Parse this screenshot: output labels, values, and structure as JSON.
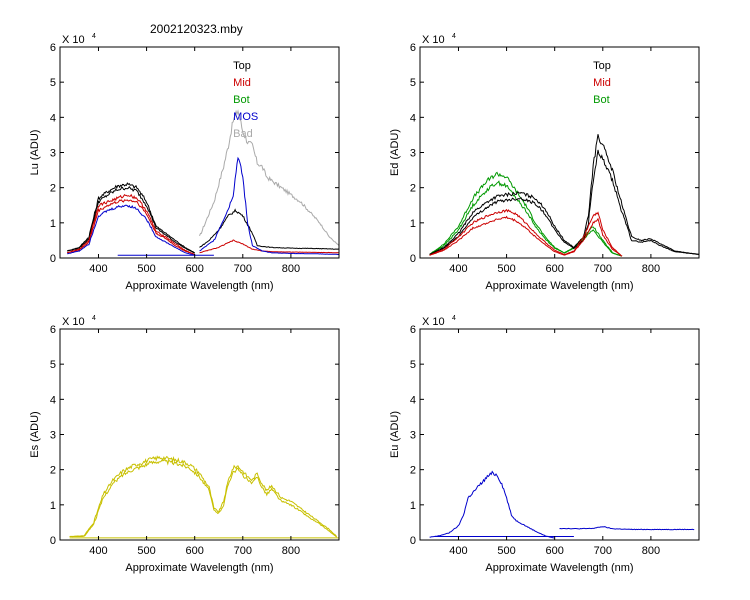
{
  "page_title": "2002120323.mby",
  "chart_data": [
    {
      "id": "lu",
      "type": "line",
      "ylabel": "Lu  (ADU)",
      "xlabel": "Approximate Wavelength (nm)",
      "exponent_label": "X 10",
      "exponent_power": "4",
      "xlim": [
        320,
        900
      ],
      "ylim": [
        0,
        6
      ],
      "xticks": [
        400,
        500,
        600,
        700,
        800
      ],
      "yticks": [
        0,
        1,
        2,
        3,
        4,
        5,
        6
      ],
      "legend": [
        {
          "label": "Top",
          "color": "#000000"
        },
        {
          "label": "Mid",
          "color": "#cc0000"
        },
        {
          "label": "Bot",
          "color": "#009900"
        },
        {
          "label": "MOS",
          "color": "#0000cc"
        },
        {
          "label": "Bad",
          "color": "#aaaaaa"
        }
      ],
      "series": [
        {
          "name": "Bad",
          "color": "#aaaaaa",
          "x": [
            610,
            640,
            660,
            670,
            680,
            690,
            700,
            710,
            720,
            730,
            740,
            750,
            760,
            780,
            800,
            820,
            840,
            860,
            880,
            900
          ],
          "y": [
            0.6,
            1.6,
            2.6,
            3.2,
            3.9,
            4.2,
            3.6,
            3.3,
            3.2,
            2.7,
            2.6,
            2.3,
            2.2,
            2.0,
            1.8,
            1.6,
            1.3,
            1.0,
            0.6,
            0.35
          ]
        },
        {
          "name": "Top",
          "color": "#000000",
          "x": [
            335,
            360,
            380,
            400,
            420,
            440,
            460,
            480,
            500,
            520,
            540,
            560,
            580,
            600
          ],
          "y": [
            0.2,
            0.3,
            0.6,
            1.7,
            1.9,
            2.05,
            2.1,
            2.0,
            1.6,
            0.9,
            0.7,
            0.5,
            0.3,
            0.15
          ]
        },
        {
          "name": "Top",
          "color": "#000000",
          "x": [
            335,
            360,
            380,
            400,
            420,
            440,
            460,
            480,
            500,
            520,
            540,
            560,
            580,
            600
          ],
          "y": [
            0.2,
            0.28,
            0.55,
            1.6,
            1.8,
            1.95,
            2.0,
            1.9,
            1.5,
            0.85,
            0.65,
            0.45,
            0.28,
            0.14
          ]
        },
        {
          "name": "Top",
          "color": "#000000",
          "x": [
            610,
            630,
            650,
            670,
            685,
            700,
            720,
            730,
            760,
            800,
            850,
            900
          ],
          "y": [
            0.3,
            0.5,
            0.8,
            1.2,
            1.35,
            1.2,
            0.7,
            0.35,
            0.3,
            0.28,
            0.27,
            0.25
          ]
        },
        {
          "name": "Mid",
          "color": "#cc0000",
          "x": [
            335,
            360,
            380,
            400,
            420,
            440,
            460,
            480,
            500,
            520,
            540,
            560,
            580,
            600
          ],
          "y": [
            0.15,
            0.25,
            0.5,
            1.5,
            1.6,
            1.7,
            1.8,
            1.7,
            1.35,
            0.75,
            0.6,
            0.4,
            0.22,
            0.1
          ]
        },
        {
          "name": "Mid",
          "color": "#cc0000",
          "x": [
            335,
            360,
            380,
            400,
            420,
            440,
            460,
            480,
            500,
            520,
            540,
            560,
            580,
            600
          ],
          "y": [
            0.15,
            0.23,
            0.45,
            1.35,
            1.5,
            1.6,
            1.65,
            1.6,
            1.25,
            0.7,
            0.55,
            0.35,
            0.2,
            0.1
          ]
        },
        {
          "name": "Mid",
          "color": "#cc0000",
          "x": [
            610,
            650,
            680,
            700,
            720,
            740,
            760,
            800,
            850,
            900
          ],
          "y": [
            0.15,
            0.3,
            0.5,
            0.4,
            0.25,
            0.2,
            0.18,
            0.17,
            0.16,
            0.15
          ]
        },
        {
          "name": "MOS",
          "color": "#0000cc",
          "x": [
            335,
            360,
            380,
            400,
            420,
            440,
            460,
            480,
            500,
            520,
            540,
            560,
            580,
            600
          ],
          "y": [
            0.12,
            0.2,
            0.4,
            1.2,
            1.35,
            1.45,
            1.5,
            1.4,
            1.1,
            0.6,
            0.45,
            0.3,
            0.15,
            0.08
          ]
        },
        {
          "name": "MOS",
          "color": "#0000cc",
          "x": [
            610,
            640,
            660,
            670,
            680,
            690,
            700,
            710,
            720,
            740,
            760,
            800,
            850,
            900
          ],
          "y": [
            0.2,
            0.5,
            1.1,
            1.4,
            1.8,
            2.9,
            2.3,
            1.0,
            0.35,
            0.2,
            0.15,
            0.13,
            0.12,
            0.1
          ]
        },
        {
          "name": "MOS",
          "color": "#0000cc",
          "x": [
            440,
            480,
            520,
            560,
            600,
            640
          ],
          "y": [
            0.08,
            0.08,
            0.08,
            0.08,
            0.08,
            0.08
          ]
        }
      ]
    },
    {
      "id": "ed",
      "type": "line",
      "ylabel": "Ed  (ADU)",
      "xlabel": "Approximate Wavelength (nm)",
      "exponent_label": "X 10",
      "exponent_power": "4",
      "xlim": [
        320,
        900
      ],
      "ylim": [
        0,
        6
      ],
      "xticks": [
        400,
        500,
        600,
        700,
        800
      ],
      "yticks": [
        0,
        1,
        2,
        3,
        4,
        5,
        6
      ],
      "legend": [
        {
          "label": "Top",
          "color": "#000000"
        },
        {
          "label": "Mid",
          "color": "#cc0000"
        },
        {
          "label": "Bot",
          "color": "#009900"
        }
      ],
      "series": [
        {
          "name": "Bot",
          "color": "#009900",
          "x": [
            340,
            370,
            400,
            430,
            460,
            480,
            500,
            520,
            540,
            560,
            580,
            600,
            620,
            640,
            660,
            680,
            700,
            720,
            740
          ],
          "y": [
            0.1,
            0.4,
            0.9,
            1.7,
            2.2,
            2.4,
            2.3,
            1.9,
            1.5,
            1.0,
            0.6,
            0.3,
            0.15,
            0.3,
            0.6,
            0.9,
            0.5,
            0.15,
            0.05
          ]
        },
        {
          "name": "Bot",
          "color": "#009900",
          "x": [
            340,
            370,
            400,
            430,
            460,
            480,
            500,
            520,
            540,
            560,
            580,
            600,
            620,
            640,
            660,
            680,
            700,
            720,
            740
          ],
          "y": [
            0.1,
            0.35,
            0.8,
            1.5,
            1.95,
            2.15,
            2.05,
            1.7,
            1.35,
            0.9,
            0.55,
            0.28,
            0.14,
            0.28,
            0.55,
            0.8,
            0.45,
            0.14,
            0.05
          ]
        },
        {
          "name": "Top",
          "color": "#000000",
          "x": [
            340,
            370,
            400,
            430,
            460,
            480,
            500,
            530,
            560,
            580,
            600,
            620,
            640,
            660,
            670,
            680,
            690,
            700,
            720,
            740,
            760,
            780,
            800,
            820,
            850,
            900
          ],
          "y": [
            0.1,
            0.3,
            0.7,
            1.3,
            1.6,
            1.75,
            1.8,
            1.85,
            1.7,
            1.4,
            0.9,
            0.5,
            0.3,
            0.6,
            1.2,
            2.6,
            3.5,
            3.2,
            2.5,
            1.5,
            0.6,
            0.5,
            0.55,
            0.4,
            0.2,
            0.1
          ]
        },
        {
          "name": "Top",
          "color": "#000000",
          "x": [
            340,
            370,
            400,
            430,
            460,
            480,
            500,
            530,
            560,
            580,
            600,
            620,
            640,
            660,
            670,
            680,
            690,
            700,
            720,
            740,
            760,
            780,
            800,
            820,
            850,
            900
          ],
          "y": [
            0.1,
            0.28,
            0.62,
            1.15,
            1.45,
            1.6,
            1.65,
            1.7,
            1.55,
            1.25,
            0.8,
            0.45,
            0.28,
            0.5,
            1.0,
            2.2,
            3.0,
            2.8,
            2.2,
            1.3,
            0.5,
            0.45,
            0.5,
            0.35,
            0.18,
            0.1
          ]
        },
        {
          "name": "Mid",
          "color": "#cc0000",
          "x": [
            340,
            370,
            400,
            430,
            460,
            480,
            500,
            520,
            540,
            560,
            580,
            600,
            620,
            640,
            660,
            680,
            690,
            700,
            720,
            740
          ],
          "y": [
            0.08,
            0.25,
            0.6,
            1.0,
            1.2,
            1.3,
            1.35,
            1.25,
            1.0,
            0.7,
            0.45,
            0.22,
            0.1,
            0.2,
            0.6,
            1.2,
            1.3,
            0.8,
            0.3,
            0.05
          ]
        },
        {
          "name": "Mid",
          "color": "#cc0000",
          "x": [
            340,
            370,
            400,
            430,
            460,
            480,
            500,
            520,
            540,
            560,
            580,
            600,
            620,
            640,
            660,
            680,
            690,
            700,
            720,
            740
          ],
          "y": [
            0.08,
            0.22,
            0.5,
            0.85,
            1.0,
            1.1,
            1.15,
            1.05,
            0.85,
            0.6,
            0.38,
            0.18,
            0.08,
            0.18,
            0.5,
            1.0,
            1.1,
            0.65,
            0.25,
            0.05
          ]
        }
      ]
    },
    {
      "id": "es",
      "type": "line",
      "ylabel": "Es  (ADU)",
      "xlabel": "Approximate Wavelength (nm)",
      "exponent_label": "X 10",
      "exponent_power": "4",
      "xlim": [
        320,
        900
      ],
      "ylim": [
        0,
        6
      ],
      "xticks": [
        400,
        500,
        600,
        700,
        800
      ],
      "yticks": [
        0,
        1,
        2,
        3,
        4,
        5,
        6
      ],
      "legend": [],
      "series": [
        {
          "name": "Es",
          "color": "#c8c000",
          "x": [
            340,
            370,
            390,
            410,
            430,
            450,
            470,
            490,
            510,
            530,
            550,
            570,
            590,
            610,
            630,
            640,
            650,
            660,
            670,
            680,
            690,
            700,
            710,
            720,
            730,
            740,
            750,
            760,
            780,
            800,
            820,
            840,
            860,
            880,
            895
          ],
          "y": [
            0.1,
            0.12,
            0.5,
            1.3,
            1.7,
            1.95,
            2.1,
            2.2,
            2.3,
            2.35,
            2.3,
            2.25,
            2.15,
            1.9,
            1.5,
            0.9,
            0.8,
            1.1,
            1.7,
            2.05,
            2.1,
            1.95,
            1.8,
            1.7,
            1.9,
            1.6,
            1.4,
            1.55,
            1.2,
            1.1,
            0.9,
            0.7,
            0.5,
            0.3,
            0.1
          ]
        },
        {
          "name": "Es",
          "color": "#c8c000",
          "x": [
            340,
            370,
            390,
            410,
            430,
            450,
            470,
            490,
            510,
            530,
            550,
            570,
            590,
            610,
            630,
            640,
            650,
            660,
            670,
            680,
            690,
            700,
            710,
            720,
            730,
            740,
            750,
            760,
            780,
            800,
            820,
            840,
            860,
            880,
            895
          ],
          "y": [
            0.1,
            0.1,
            0.45,
            1.2,
            1.6,
            1.85,
            2.0,
            2.1,
            2.2,
            2.25,
            2.2,
            2.15,
            2.05,
            1.8,
            1.4,
            0.85,
            0.75,
            1.0,
            1.6,
            1.95,
            2.0,
            1.85,
            1.7,
            1.6,
            1.8,
            1.5,
            1.3,
            1.45,
            1.1,
            1.0,
            0.82,
            0.62,
            0.45,
            0.25,
            0.08
          ]
        },
        {
          "name": "Es",
          "color": "#c8c000",
          "x": [
            340,
            600,
            900
          ],
          "y": [
            0.06,
            0.06,
            0.06
          ]
        }
      ]
    },
    {
      "id": "eu",
      "type": "line",
      "ylabel": "Eu  (ADU)",
      "xlabel": "Approximate Wavelength (nm)",
      "exponent_label": "X 10",
      "exponent_power": "4",
      "xlim": [
        320,
        900
      ],
      "ylim": [
        0,
        6
      ],
      "xticks": [
        400,
        500,
        600,
        700,
        800
      ],
      "yticks": [
        0,
        1,
        2,
        3,
        4,
        5,
        6
      ],
      "legend": [],
      "series": [
        {
          "name": "Eu",
          "color": "#0000cc",
          "x": [
            340,
            360,
            380,
            400,
            410,
            420,
            440,
            460,
            470,
            480,
            490,
            500,
            510,
            520,
            540,
            560,
            580,
            600
          ],
          "y": [
            0.08,
            0.12,
            0.2,
            0.4,
            0.7,
            1.2,
            1.5,
            1.8,
            1.9,
            1.85,
            1.6,
            1.2,
            0.7,
            0.55,
            0.4,
            0.25,
            0.12,
            0.05
          ]
        },
        {
          "name": "Eu",
          "color": "#0000cc",
          "x": [
            350,
            640
          ],
          "y": [
            0.1,
            0.1
          ]
        },
        {
          "name": "Eu",
          "color": "#0000cc",
          "x": [
            610,
            650,
            680,
            700,
            720,
            760,
            800,
            850,
            890
          ],
          "y": [
            0.33,
            0.32,
            0.33,
            0.38,
            0.32,
            0.3,
            0.3,
            0.3,
            0.3
          ]
        }
      ]
    }
  ]
}
